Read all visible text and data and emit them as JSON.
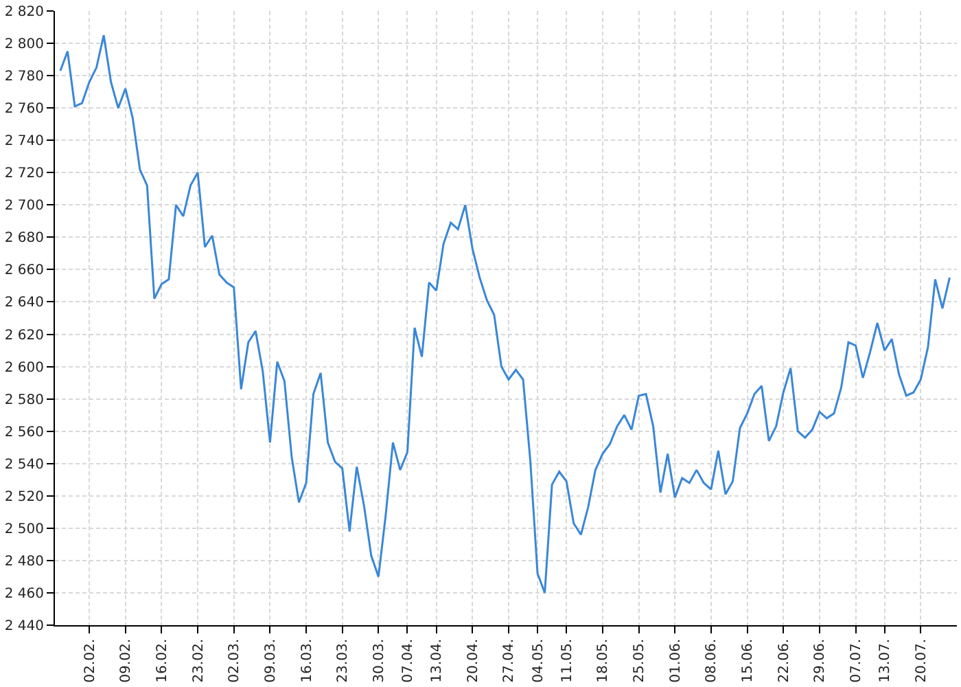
{
  "chart_data": {
    "type": "line",
    "categories": [
      null,
      null,
      null,
      null,
      "02.02.",
      null,
      null,
      null,
      null,
      "09.02.",
      null,
      null,
      null,
      null,
      "16.02.",
      null,
      null,
      null,
      null,
      "23.02.",
      null,
      null,
      null,
      null,
      "02.03.",
      null,
      null,
      null,
      null,
      "09.03.",
      null,
      null,
      null,
      null,
      "16.03.",
      null,
      null,
      null,
      null,
      "23.03.",
      null,
      null,
      null,
      null,
      "30.03.",
      null,
      null,
      null,
      "07.04.",
      null,
      null,
      null,
      "13.04.",
      null,
      null,
      null,
      null,
      "20.04.",
      null,
      null,
      null,
      null,
      "27.04.",
      null,
      null,
      null,
      "04.05.",
      null,
      null,
      null,
      "11.05.",
      null,
      null,
      null,
      null,
      "18.05.",
      null,
      null,
      null,
      null,
      "25.05.",
      null,
      null,
      null,
      null,
      "01.06.",
      null,
      null,
      null,
      null,
      "08.06.",
      null,
      null,
      null,
      null,
      "15.06.",
      null,
      null,
      null,
      null,
      "22.06.",
      null,
      null,
      null,
      null,
      "29.06.",
      null,
      null,
      null,
      null,
      "07.07.",
      null,
      null,
      null,
      "13.07.",
      null,
      null,
      null,
      null,
      "20.07.",
      null,
      null,
      null,
      null
    ],
    "series": [
      {
        "color": "#3a87d9",
        "values": [
          2783,
          2795,
          2761,
          2763,
          2776,
          2785,
          2805,
          2776,
          2760,
          2772,
          2754,
          2722,
          2712,
          2642,
          2651,
          2654,
          2700,
          2693,
          2712,
          2720,
          2674,
          2681,
          2657,
          2652,
          2649,
          2586,
          2615,
          2622,
          2597,
          2553,
          2603,
          2591,
          2544,
          2516,
          2528,
          2583,
          2596,
          2553,
          2541,
          2537,
          2498,
          2538,
          2514,
          2483,
          2470,
          2508,
          2553,
          2536,
          2547,
          2624,
          2606,
          2652,
          2647,
          2676,
          2689,
          2685,
          2700,
          2673,
          2655,
          2641,
          2632,
          2600,
          2592,
          2598,
          2592,
          2542,
          2472,
          2460,
          2527,
          2535,
          2529,
          2503,
          2496,
          2513,
          2536,
          2546,
          2552,
          2563,
          2570,
          2561,
          2582,
          2583,
          2563,
          2522,
          2546,
          2519,
          2531,
          2528,
          2536,
          2528,
          2524,
          2548,
          2521,
          2529,
          2562,
          2571,
          2583,
          2588,
          2554,
          2563,
          2584,
          2599,
          2560,
          2556,
          2561,
          2572,
          2568,
          2571,
          2587,
          2615,
          2613,
          2593,
          2609,
          2627,
          2610,
          2617,
          2595,
          2582,
          2584,
          2592,
          2612,
          2654,
          2636,
          2655
        ]
      }
    ],
    "ylim": [
      2440,
      2820
    ],
    "yticks": [
      {
        "value": 2440,
        "label": "2 440"
      },
      {
        "value": 2460,
        "label": "2 460"
      },
      {
        "value": 2480,
        "label": "2 480"
      },
      {
        "value": 2500,
        "label": "2 500"
      },
      {
        "value": 2520,
        "label": "2 520"
      },
      {
        "value": 2540,
        "label": "2 540"
      },
      {
        "value": 2560,
        "label": "2 560"
      },
      {
        "value": 2580,
        "label": "2 580"
      },
      {
        "value": 2600,
        "label": "2 600"
      },
      {
        "value": 2620,
        "label": "2 620"
      },
      {
        "value": 2640,
        "label": "2 640"
      },
      {
        "value": 2660,
        "label": "2 660"
      },
      {
        "value": 2680,
        "label": "2 680"
      },
      {
        "value": 2700,
        "label": "2 700"
      },
      {
        "value": 2720,
        "label": "2 720"
      },
      {
        "value": 2740,
        "label": "2 740"
      },
      {
        "value": 2760,
        "label": "2 760"
      },
      {
        "value": 2780,
        "label": "2 780"
      },
      {
        "value": 2800,
        "label": "2 800"
      },
      {
        "value": 2820,
        "label": "2 820"
      }
    ],
    "grid": true,
    "marker": "none",
    "line_style": "solid"
  }
}
